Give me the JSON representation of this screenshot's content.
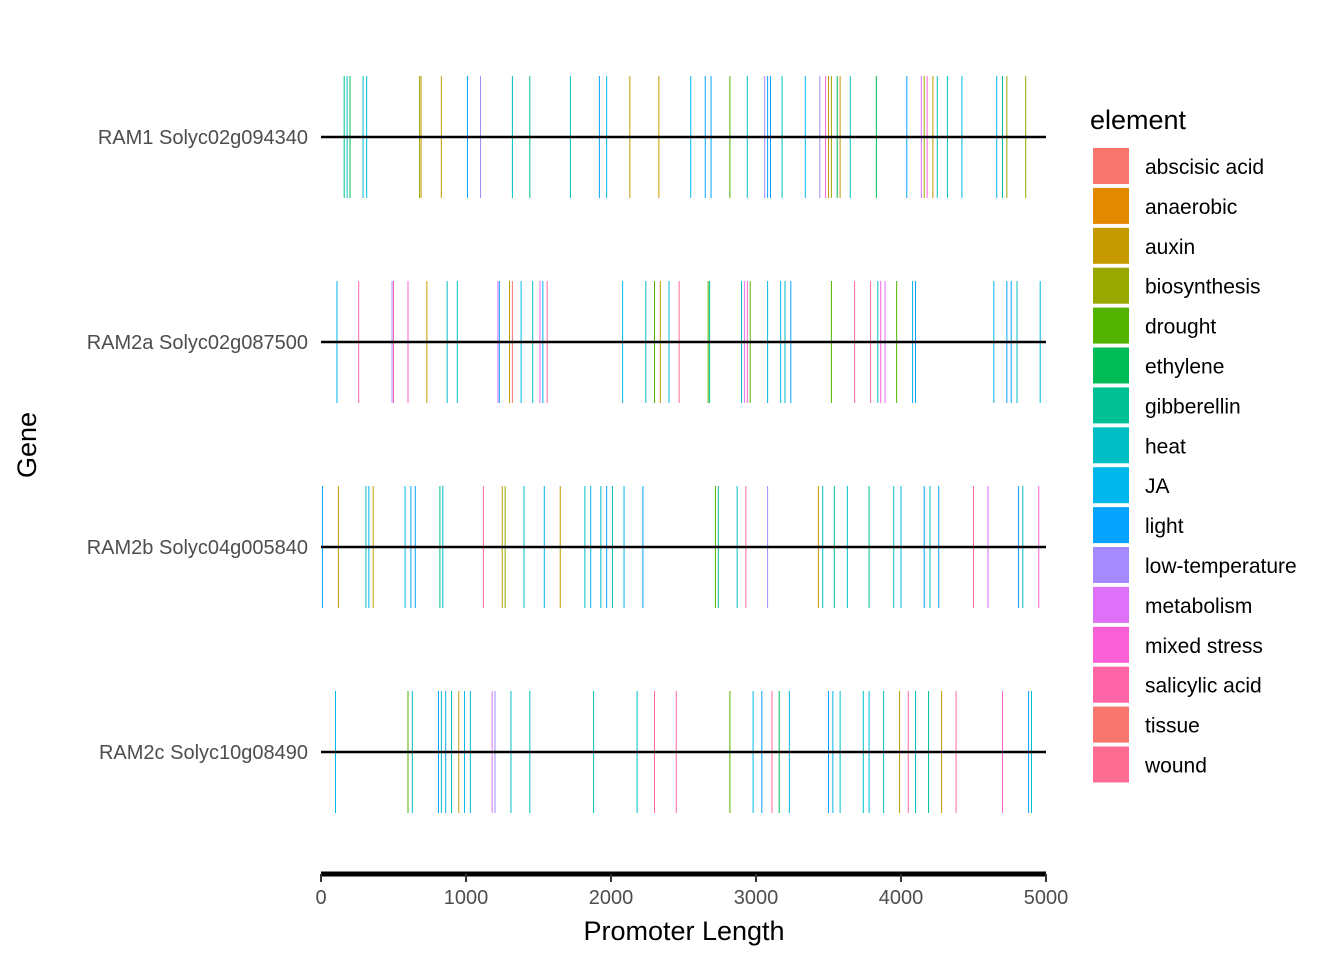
{
  "chart_data": {
    "type": "strip",
    "title": "",
    "xlabel": "Promoter Length",
    "ylabel": "Gene",
    "xlim": [
      0,
      5000
    ],
    "xticks": [
      0,
      1000,
      2000,
      3000,
      4000,
      5000
    ],
    "tick_labels": [
      "0",
      "1000",
      "2000",
      "3000",
      "4000",
      "5000"
    ],
    "legend_title": "element",
    "legend_position": "right",
    "grid": false,
    "elements": [
      {
        "name": "abscisic acid",
        "color": "#F8766D"
      },
      {
        "name": "anaerobic",
        "color": "#E38900"
      },
      {
        "name": "auxin",
        "color": "#C49A00"
      },
      {
        "name": "biosynthesis",
        "color": "#99A800"
      },
      {
        "name": "drought",
        "color": "#53B400"
      },
      {
        "name": "ethylene",
        "color": "#00BC56"
      },
      {
        "name": "gibberellin",
        "color": "#00C094"
      },
      {
        "name": "heat",
        "color": "#00BFC4"
      },
      {
        "name": "JA",
        "color": "#00B6EB"
      },
      {
        "name": "light",
        "color": "#06A4FF"
      },
      {
        "name": "low-temperature",
        "color": "#A58AFF"
      },
      {
        "name": "metabolism",
        "color": "#DF70F8"
      },
      {
        "name": "mixed stress",
        "color": "#FB61D7"
      },
      {
        "name": "salicylic acid",
        "color": "#FF66A8"
      },
      {
        "name": "tissue",
        "color": "#F8766D"
      },
      {
        "name": "wound",
        "color": "#FF6C91"
      }
    ],
    "genes": [
      {
        "name": "RAM1 Solyc02g094340",
        "sites": [
          {
            "x": 160,
            "el": "gibberellin"
          },
          {
            "x": 180,
            "el": "heat"
          },
          {
            "x": 200,
            "el": "ethylene"
          },
          {
            "x": 290,
            "el": "heat"
          },
          {
            "x": 315,
            "el": "JA"
          },
          {
            "x": 680,
            "el": "biosynthesis"
          },
          {
            "x": 690,
            "el": "auxin"
          },
          {
            "x": 830,
            "el": "auxin"
          },
          {
            "x": 1010,
            "el": "light"
          },
          {
            "x": 1100,
            "el": "low-temperature"
          },
          {
            "x": 1320,
            "el": "heat"
          },
          {
            "x": 1440,
            "el": "gibberellin"
          },
          {
            "x": 1720,
            "el": "heat"
          },
          {
            "x": 1920,
            "el": "light"
          },
          {
            "x": 1970,
            "el": "JA"
          },
          {
            "x": 2130,
            "el": "auxin"
          },
          {
            "x": 2330,
            "el": "auxin"
          },
          {
            "x": 2550,
            "el": "JA"
          },
          {
            "x": 2650,
            "el": "light"
          },
          {
            "x": 2690,
            "el": "light"
          },
          {
            "x": 2820,
            "el": "drought"
          },
          {
            "x": 2940,
            "el": "heat"
          },
          {
            "x": 3060,
            "el": "low-temperature"
          },
          {
            "x": 3080,
            "el": "light"
          },
          {
            "x": 3100,
            "el": "light"
          },
          {
            "x": 3180,
            "el": "heat"
          },
          {
            "x": 3340,
            "el": "JA"
          },
          {
            "x": 3440,
            "el": "low-temperature"
          },
          {
            "x": 3480,
            "el": "mixed stress"
          },
          {
            "x": 3500,
            "el": "auxin"
          },
          {
            "x": 3520,
            "el": "biosynthesis"
          },
          {
            "x": 3560,
            "el": "ethylene"
          },
          {
            "x": 3580,
            "el": "auxin"
          },
          {
            "x": 3650,
            "el": "heat"
          },
          {
            "x": 3830,
            "el": "ethylene"
          },
          {
            "x": 4040,
            "el": "light"
          },
          {
            "x": 4140,
            "el": "metabolism"
          },
          {
            "x": 4160,
            "el": "biosynthesis"
          },
          {
            "x": 4180,
            "el": "mixed stress"
          },
          {
            "x": 4220,
            "el": "auxin"
          },
          {
            "x": 4250,
            "el": "heat"
          },
          {
            "x": 4320,
            "el": "heat"
          },
          {
            "x": 4420,
            "el": "JA"
          },
          {
            "x": 4660,
            "el": "JA"
          },
          {
            "x": 4700,
            "el": "gibberellin"
          },
          {
            "x": 4730,
            "el": "biosynthesis"
          },
          {
            "x": 4860,
            "el": "biosynthesis"
          }
        ]
      },
      {
        "name": "RAM2a Solyc02g087500",
        "sites": [
          {
            "x": 110,
            "el": "JA"
          },
          {
            "x": 260,
            "el": "salicylic acid"
          },
          {
            "x": 490,
            "el": "low-temperature"
          },
          {
            "x": 500,
            "el": "salicylic acid"
          },
          {
            "x": 600,
            "el": "mixed stress"
          },
          {
            "x": 730,
            "el": "auxin"
          },
          {
            "x": 870,
            "el": "heat"
          },
          {
            "x": 940,
            "el": "heat"
          },
          {
            "x": 1220,
            "el": "metabolism"
          },
          {
            "x": 1230,
            "el": "light"
          },
          {
            "x": 1300,
            "el": "auxin"
          },
          {
            "x": 1320,
            "el": "abscisic acid"
          },
          {
            "x": 1380,
            "el": "JA"
          },
          {
            "x": 1460,
            "el": "heat"
          },
          {
            "x": 1510,
            "el": "metabolism"
          },
          {
            "x": 1530,
            "el": "JA"
          },
          {
            "x": 1560,
            "el": "wound"
          },
          {
            "x": 2080,
            "el": "JA"
          },
          {
            "x": 2240,
            "el": "heat"
          },
          {
            "x": 2300,
            "el": "drought"
          },
          {
            "x": 2340,
            "el": "auxin"
          },
          {
            "x": 2400,
            "el": "JA"
          },
          {
            "x": 2470,
            "el": "wound"
          },
          {
            "x": 2670,
            "el": "drought"
          },
          {
            "x": 2680,
            "el": "gibberellin"
          },
          {
            "x": 2900,
            "el": "heat"
          },
          {
            "x": 2920,
            "el": "metabolism"
          },
          {
            "x": 2940,
            "el": "mixed stress"
          },
          {
            "x": 2960,
            "el": "drought"
          },
          {
            "x": 3080,
            "el": "JA"
          },
          {
            "x": 3170,
            "el": "JA"
          },
          {
            "x": 3200,
            "el": "heat"
          },
          {
            "x": 3240,
            "el": "light"
          },
          {
            "x": 3520,
            "el": "drought"
          },
          {
            "x": 3680,
            "el": "wound"
          },
          {
            "x": 3790,
            "el": "wound"
          },
          {
            "x": 3840,
            "el": "heat"
          },
          {
            "x": 3860,
            "el": "mixed stress"
          },
          {
            "x": 3890,
            "el": "metabolism"
          },
          {
            "x": 3970,
            "el": "drought"
          },
          {
            "x": 4080,
            "el": "JA"
          },
          {
            "x": 4100,
            "el": "light"
          },
          {
            "x": 4640,
            "el": "JA"
          },
          {
            "x": 4730,
            "el": "light"
          },
          {
            "x": 4760,
            "el": "light"
          },
          {
            "x": 4800,
            "el": "heat"
          },
          {
            "x": 4960,
            "el": "JA"
          }
        ]
      },
      {
        "name": "RAM2b Solyc04g005840",
        "sites": [
          {
            "x": 10,
            "el": "light"
          },
          {
            "x": 120,
            "el": "auxin"
          },
          {
            "x": 310,
            "el": "heat"
          },
          {
            "x": 330,
            "el": "JA"
          },
          {
            "x": 360,
            "el": "auxin"
          },
          {
            "x": 580,
            "el": "JA"
          },
          {
            "x": 620,
            "el": "light"
          },
          {
            "x": 650,
            "el": "light"
          },
          {
            "x": 820,
            "el": "gibberellin"
          },
          {
            "x": 840,
            "el": "heat"
          },
          {
            "x": 1120,
            "el": "salicylic acid"
          },
          {
            "x": 1250,
            "el": "auxin"
          },
          {
            "x": 1270,
            "el": "biosynthesis"
          },
          {
            "x": 1400,
            "el": "heat"
          },
          {
            "x": 1540,
            "el": "JA"
          },
          {
            "x": 1650,
            "el": "auxin"
          },
          {
            "x": 1820,
            "el": "heat"
          },
          {
            "x": 1860,
            "el": "JA"
          },
          {
            "x": 1930,
            "el": "heat"
          },
          {
            "x": 1970,
            "el": "light"
          },
          {
            "x": 2010,
            "el": "heat"
          },
          {
            "x": 2090,
            "el": "JA"
          },
          {
            "x": 2220,
            "el": "light"
          },
          {
            "x": 2720,
            "el": "drought"
          },
          {
            "x": 2740,
            "el": "gibberellin"
          },
          {
            "x": 2870,
            "el": "heat"
          },
          {
            "x": 2930,
            "el": "salicylic acid"
          },
          {
            "x": 3080,
            "el": "low-temperature"
          },
          {
            "x": 3430,
            "el": "auxin"
          },
          {
            "x": 3460,
            "el": "heat"
          },
          {
            "x": 3540,
            "el": "gibberellin"
          },
          {
            "x": 3630,
            "el": "heat"
          },
          {
            "x": 3780,
            "el": "gibberellin"
          },
          {
            "x": 3950,
            "el": "heat"
          },
          {
            "x": 4000,
            "el": "JA"
          },
          {
            "x": 4160,
            "el": "light"
          },
          {
            "x": 4200,
            "el": "heat"
          },
          {
            "x": 4260,
            "el": "light"
          },
          {
            "x": 4500,
            "el": "wound"
          },
          {
            "x": 4600,
            "el": "metabolism"
          },
          {
            "x": 4810,
            "el": "light"
          },
          {
            "x": 4840,
            "el": "heat"
          },
          {
            "x": 4950,
            "el": "mixed stress"
          }
        ]
      },
      {
        "name": "RAM2c Solyc10g08490",
        "sites": [
          {
            "x": 100,
            "el": "JA"
          },
          {
            "x": 600,
            "el": "drought"
          },
          {
            "x": 630,
            "el": "heat"
          },
          {
            "x": 810,
            "el": "light"
          },
          {
            "x": 830,
            "el": "heat"
          },
          {
            "x": 860,
            "el": "JA"
          },
          {
            "x": 900,
            "el": "heat"
          },
          {
            "x": 950,
            "el": "auxin"
          },
          {
            "x": 990,
            "el": "JA"
          },
          {
            "x": 1030,
            "el": "heat"
          },
          {
            "x": 1180,
            "el": "metabolism"
          },
          {
            "x": 1200,
            "el": "low-temperature"
          },
          {
            "x": 1310,
            "el": "heat"
          },
          {
            "x": 1440,
            "el": "heat"
          },
          {
            "x": 1880,
            "el": "heat"
          },
          {
            "x": 2180,
            "el": "heat"
          },
          {
            "x": 2300,
            "el": "salicylic acid"
          },
          {
            "x": 2450,
            "el": "salicylic acid"
          },
          {
            "x": 2820,
            "el": "drought"
          },
          {
            "x": 2980,
            "el": "JA"
          },
          {
            "x": 3040,
            "el": "light"
          },
          {
            "x": 3110,
            "el": "salicylic acid"
          },
          {
            "x": 3160,
            "el": "ethylene"
          },
          {
            "x": 3230,
            "el": "JA"
          },
          {
            "x": 3500,
            "el": "light"
          },
          {
            "x": 3530,
            "el": "JA"
          },
          {
            "x": 3580,
            "el": "heat"
          },
          {
            "x": 3740,
            "el": "heat"
          },
          {
            "x": 3780,
            "el": "JA"
          },
          {
            "x": 3880,
            "el": "heat"
          },
          {
            "x": 3990,
            "el": "auxin"
          },
          {
            "x": 4050,
            "el": "salicylic acid"
          },
          {
            "x": 4100,
            "el": "heat"
          },
          {
            "x": 4190,
            "el": "gibberellin"
          },
          {
            "x": 4280,
            "el": "auxin"
          },
          {
            "x": 4380,
            "el": "salicylic acid"
          },
          {
            "x": 4700,
            "el": "mixed stress"
          },
          {
            "x": 4880,
            "el": "light"
          },
          {
            "x": 4900,
            "el": "heat"
          }
        ]
      }
    ]
  }
}
